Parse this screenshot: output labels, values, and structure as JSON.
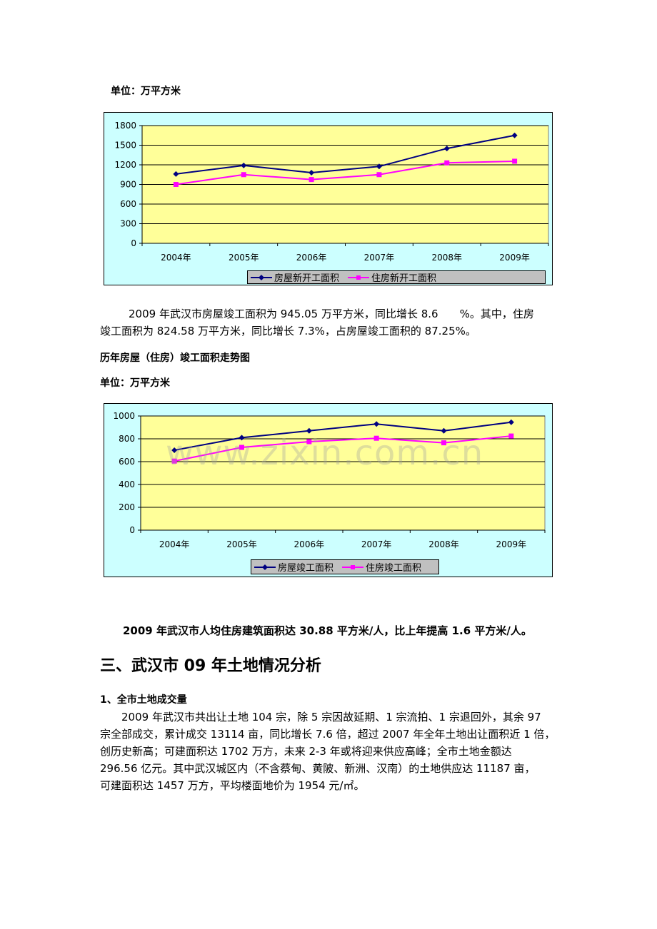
{
  "unit_label_1": "单位：万平方米",
  "unit_label_2": "单位：万平方米",
  "para1": "2009年武汉市房屋竣工面积为945.05万平方米，同比增长8.6　　%。其中，住房竣工面积为824.58万平方米，同比增长7.3%，占房屋竣工面积的87.25%。",
  "para1_line1": "2009 年武汉市房屋竣工面积为 945.05 万平方米，同比增长 8.6　　%。其中，住房",
  "para1_line2": "竣工面积为 824.58 万平方米，同比增长 7.3%，占房屋竣工面积的 87.25%。",
  "chart2_heading": "历年房屋（住房）竣工面积走势图",
  "watermark": "www.zixin.com.cn",
  "para2": "2009 年武汉市人均住房建筑面积达 30.88 平方米/人，比上年提高 1.6 平方米/人。",
  "section_title": "三、武汉市 09 年土地情况分析",
  "sub_heading": "1、全市土地成交量",
  "para3_lines": [
    "2009 年武汉市共出让土地 104 宗，除 5 宗因故延期、1 宗流拍、1 宗退回外，其余 97",
    "宗全部成交，累计成交 13114 亩，同比增长 7.6 倍，超过 2007 年全年土地出让面积近 1 倍，",
    "创历史新高；可建面积达 1702 万方，未来 2-3 年或将迎来供应高峰；全市土地金额达",
    "296.56 亿元。其中武汉城区内（不含蔡甸、黄陂、新洲、汉南）的土地供应达 11187 亩，",
    "可建面积达 1457 万方，平均楼面地价为 1954 元/㎡。"
  ],
  "colors": {
    "series1": "#000080",
    "series2": "#ff00ff",
    "plot_bg": "#ffff99",
    "chart_bg": "#ccffff",
    "legend_bg": "#c0c0c0"
  },
  "chart_data": [
    {
      "type": "line",
      "categories": [
        "2004年",
        "2005年",
        "2006年",
        "2007年",
        "2008年",
        "2009年"
      ],
      "yticks": [
        "0",
        "300",
        "600",
        "900",
        "1200",
        "1500",
        "1800"
      ],
      "ylim": [
        0,
        1800
      ],
      "grid": true,
      "legend_position": "bottom",
      "series": [
        {
          "name": "房屋新开工面积",
          "marker": "diamond",
          "values": [
            1060,
            1190,
            1080,
            1175,
            1450,
            1650
          ]
        },
        {
          "name": "住房新开工面积",
          "marker": "square",
          "values": [
            900,
            1050,
            975,
            1050,
            1230,
            1255
          ]
        }
      ]
    },
    {
      "type": "line",
      "categories": [
        "2004年",
        "2005年",
        "2006年",
        "2007年",
        "2008年",
        "2009年"
      ],
      "yticks": [
        "0",
        "200",
        "400",
        "600",
        "800",
        "1000"
      ],
      "ylim": [
        0,
        1000
      ],
      "grid": true,
      "legend_position": "bottom",
      "series": [
        {
          "name": "房屋竣工面积",
          "marker": "diamond",
          "values": [
            700,
            810,
            870,
            930,
            870,
            945.05
          ]
        },
        {
          "name": "住房竣工面积",
          "marker": "square",
          "values": [
            605,
            725,
            775,
            805,
            765,
            824.58
          ]
        }
      ]
    }
  ]
}
